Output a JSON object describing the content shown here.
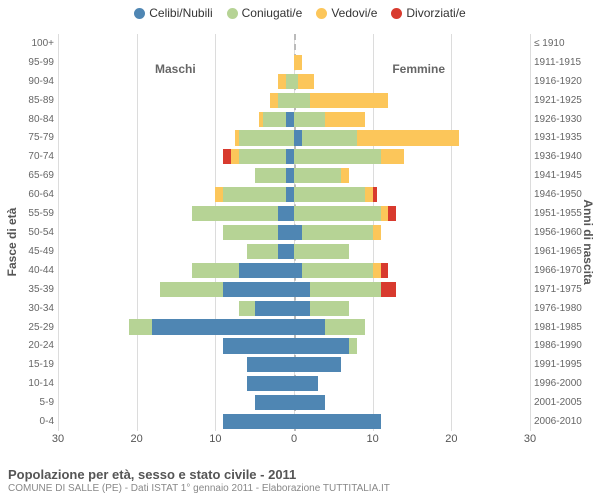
{
  "legend": {
    "items": [
      {
        "label": "Celibi/Nubili",
        "color": "#4f86b3"
      },
      {
        "label": "Coniugati/e",
        "color": "#b6d395"
      },
      {
        "label": "Vedovi/e",
        "color": "#fcc65a"
      },
      {
        "label": "Divorziati/e",
        "color": "#d83a2e"
      }
    ]
  },
  "side_labels": {
    "left": "Maschi",
    "right": "Femmine"
  },
  "y_left_title": "Fasce di età",
  "y_right_title": "Anni di nascita",
  "x_axis": {
    "min": -30,
    "max": 30,
    "ticks": [
      30,
      20,
      10,
      0,
      10,
      20,
      30
    ]
  },
  "title": "Popolazione per età, sesso e stato civile - 2011",
  "subtitle": "COMUNE DI SALLE (PE) - Dati ISTAT 1° gennaio 2011 - Elaborazione TUTTITALIA.IT",
  "colors": {
    "grid": "#dcdcdc",
    "axis_zero": "#bbbbbb",
    "background": "#ffffff"
  },
  "rows": [
    {
      "age": "100+",
      "birth": "≤ 1910",
      "m": [
        0,
        0,
        0,
        0
      ],
      "f": [
        0,
        0,
        0,
        0
      ]
    },
    {
      "age": "95-99",
      "birth": "1911-1915",
      "m": [
        0,
        0,
        0,
        0
      ],
      "f": [
        0,
        0,
        1,
        0
      ]
    },
    {
      "age": "90-94",
      "birth": "1916-1920",
      "m": [
        0,
        1,
        1,
        0
      ],
      "f": [
        0,
        0.5,
        2,
        0
      ]
    },
    {
      "age": "85-89",
      "birth": "1921-1925",
      "m": [
        0,
        2,
        1,
        0
      ],
      "f": [
        0,
        2,
        10,
        0
      ]
    },
    {
      "age": "80-84",
      "birth": "1926-1930",
      "m": [
        1,
        3,
        0.5,
        0
      ],
      "f": [
        0,
        4,
        5,
        0
      ]
    },
    {
      "age": "75-79",
      "birth": "1931-1935",
      "m": [
        0,
        7,
        0.5,
        0
      ],
      "f": [
        1,
        7,
        13,
        0
      ]
    },
    {
      "age": "70-74",
      "birth": "1936-1940",
      "m": [
        1,
        6,
        1,
        1
      ],
      "f": [
        0,
        11,
        3,
        0
      ]
    },
    {
      "age": "65-69",
      "birth": "1941-1945",
      "m": [
        1,
        4,
        0,
        0
      ],
      "f": [
        0,
        6,
        1,
        0
      ]
    },
    {
      "age": "60-64",
      "birth": "1946-1950",
      "m": [
        1,
        8,
        1,
        0
      ],
      "f": [
        0,
        9,
        1,
        0.5
      ]
    },
    {
      "age": "55-59",
      "birth": "1951-1955",
      "m": [
        2,
        11,
        0,
        0
      ],
      "f": [
        0,
        11,
        1,
        1
      ]
    },
    {
      "age": "50-54",
      "birth": "1956-1960",
      "m": [
        2,
        7,
        0,
        0
      ],
      "f": [
        1,
        9,
        1,
        0
      ]
    },
    {
      "age": "45-49",
      "birth": "1961-1965",
      "m": [
        2,
        4,
        0,
        0
      ],
      "f": [
        0,
        7,
        0,
        0
      ]
    },
    {
      "age": "40-44",
      "birth": "1966-1970",
      "m": [
        7,
        6,
        0,
        0
      ],
      "f": [
        1,
        9,
        1,
        1
      ]
    },
    {
      "age": "35-39",
      "birth": "1971-1975",
      "m": [
        9,
        8,
        0,
        0
      ],
      "f": [
        2,
        9,
        0,
        2
      ]
    },
    {
      "age": "30-34",
      "birth": "1976-1980",
      "m": [
        5,
        2,
        0,
        0
      ],
      "f": [
        2,
        5,
        0,
        0
      ]
    },
    {
      "age": "25-29",
      "birth": "1981-1985",
      "m": [
        18,
        3,
        0,
        0
      ],
      "f": [
        4,
        5,
        0,
        0
      ]
    },
    {
      "age": "20-24",
      "birth": "1986-1990",
      "m": [
        9,
        0,
        0,
        0
      ],
      "f": [
        7,
        1,
        0,
        0
      ]
    },
    {
      "age": "15-19",
      "birth": "1991-1995",
      "m": [
        6,
        0,
        0,
        0
      ],
      "f": [
        6,
        0,
        0,
        0
      ]
    },
    {
      "age": "10-14",
      "birth": "1996-2000",
      "m": [
        6,
        0,
        0,
        0
      ],
      "f": [
        3,
        0,
        0,
        0
      ]
    },
    {
      "age": "5-9",
      "birth": "2001-2005",
      "m": [
        5,
        0,
        0,
        0
      ],
      "f": [
        4,
        0,
        0,
        0
      ]
    },
    {
      "age": "0-4",
      "birth": "2006-2010",
      "m": [
        9,
        0,
        0,
        0
      ],
      "f": [
        11,
        0,
        0,
        0
      ]
    }
  ]
}
